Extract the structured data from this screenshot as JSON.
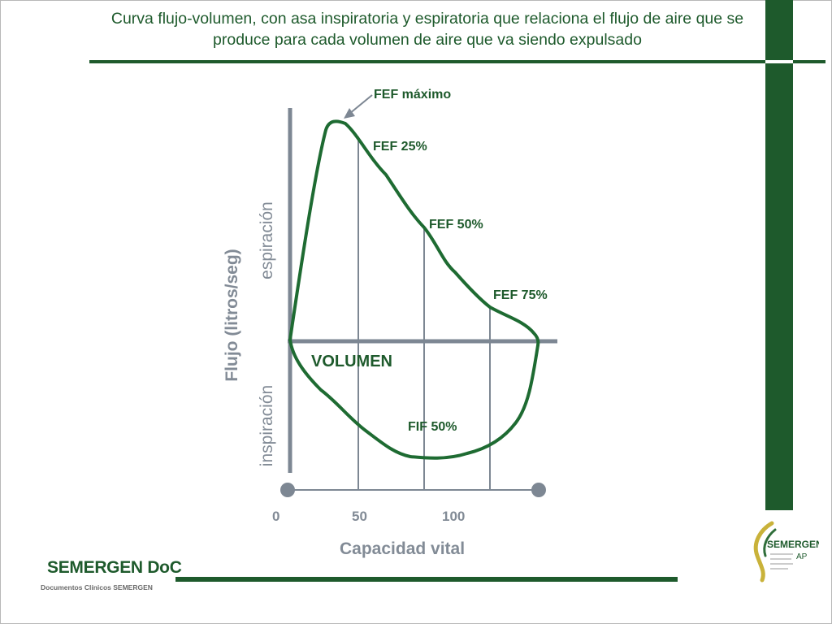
{
  "title": "Curva flujo-volumen, con asa inspiratoria y espiratoria que relaciona el flujo de aire que se produce para cada volumen de aire que va siendo expulsado",
  "diagram": {
    "y_axis_label": "Flujo (litros/seg)",
    "upper_region_label": "espiración",
    "lower_region_label": "inspiración",
    "x_axis_label": "VOLUMEN",
    "bottom_axis_label": "Capacidad vital",
    "ticks": [
      "0",
      "50",
      "100"
    ],
    "annotations": {
      "fef_max": "FEF máximo",
      "fef_25": "FEF 25%",
      "fef_50": "FEF 50%",
      "fef_75": "FEF 75%",
      "fif_50": "FIF 50%"
    },
    "colors": {
      "curve": "#1e6b32",
      "axis": "#7d8793",
      "accent": "#1e5a2c"
    }
  },
  "footer": {
    "brand": "SEMERGEN DoC",
    "subtitle": "Documentos Clínicos SEMERGEN"
  },
  "logo": {
    "name": "SEMERGEN",
    "suffix": "AP"
  }
}
